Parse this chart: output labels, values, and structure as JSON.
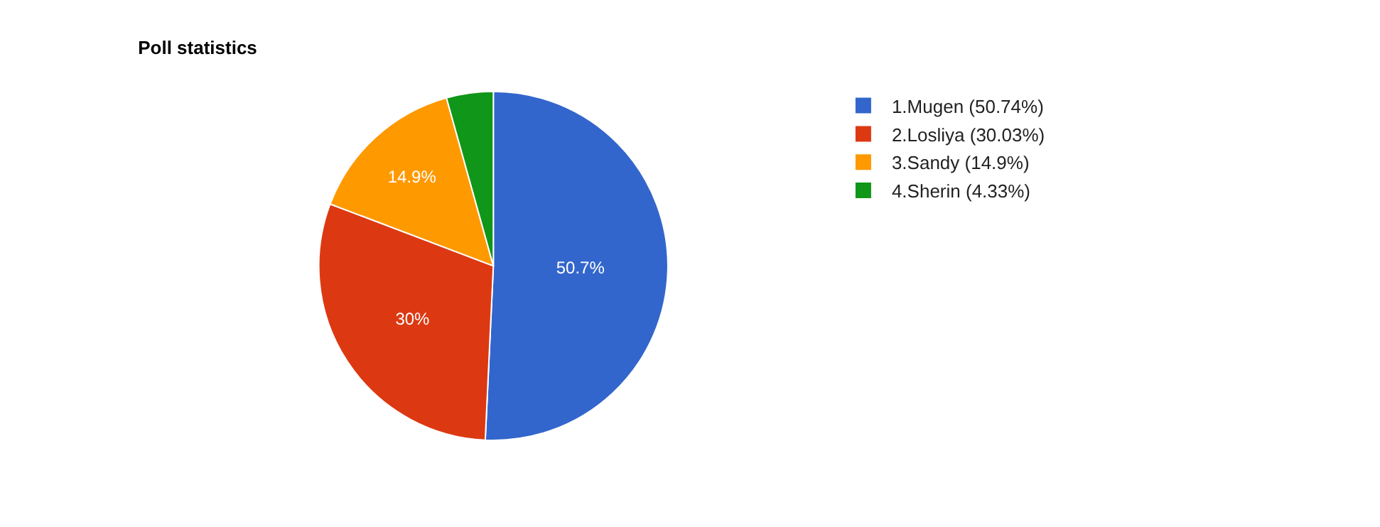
{
  "chart_data": {
    "type": "pie",
    "title": "Poll statistics",
    "categories": [
      "1.Mugen (50.74%)",
      "2.Losliya (30.03%)",
      "3.Sandy (14.9%)",
      "4.Sherin (4.33%)"
    ],
    "values": [
      50.74,
      30.03,
      14.9,
      4.33
    ],
    "colors": [
      "#3366cc",
      "#dc3912",
      "#ff9900",
      "#109618"
    ],
    "value_labels": [
      "50.7%",
      "30%",
      "14.9%",
      null
    ],
    "legend": "top right"
  }
}
